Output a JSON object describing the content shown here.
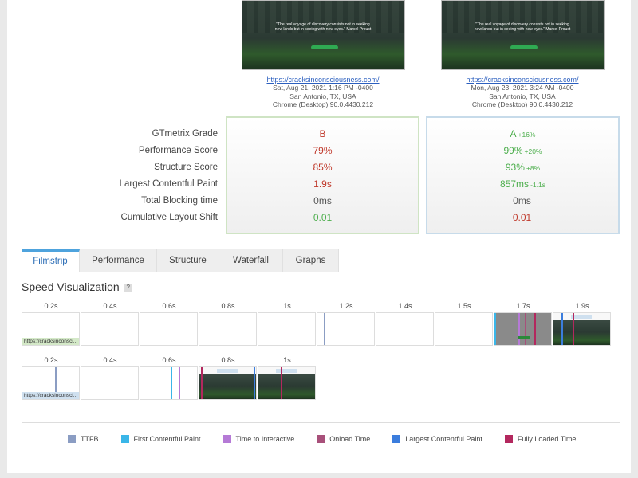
{
  "reports": [
    {
      "quote": "\"The real voyage of discovery consists not in seeking new lands but in seeing with new eyes.\" Marcel Proust",
      "url": "https://cracksinconsciousness.com/",
      "date": "Sat, Aug 21, 2021 1:16 PM -0400",
      "location": "San Antonio, TX, USA",
      "browser": "Chrome (Desktop) 90.0.4430.212"
    },
    {
      "quote": "\"The real voyage of discovery consists not in seeking new lands but in seeing with new eyes.\" Marcel Proust",
      "url": "https://cracksinconsciousness.com/",
      "date": "Mon, Aug 23, 2021 3:24 AM -0400",
      "location": "San Antonio, TX, USA",
      "browser": "Chrome (Desktop) 90.0.4430.212"
    }
  ],
  "metrics": {
    "labels": [
      "GTmetrix Grade",
      "Performance Score",
      "Structure Score",
      "Largest Contentful Paint",
      "Total Blocking time",
      "Cumulative Layout Shift"
    ],
    "before": [
      {
        "value": "B",
        "status": "bad"
      },
      {
        "value": "79%",
        "status": "bad"
      },
      {
        "value": "85%",
        "status": "bad"
      },
      {
        "value": "1.9s",
        "status": "bad"
      },
      {
        "value": "0ms",
        "status": "neutral"
      },
      {
        "value": "0.01",
        "status": "good"
      }
    ],
    "after": [
      {
        "value": "A",
        "delta": "+16%",
        "status": "good"
      },
      {
        "value": "99%",
        "delta": "+20%",
        "status": "good"
      },
      {
        "value": "93%",
        "delta": "+8%",
        "status": "good"
      },
      {
        "value": "857ms",
        "delta": "-1.1s",
        "status": "good"
      },
      {
        "value": "0ms",
        "delta": "",
        "status": "neutral"
      },
      {
        "value": "0.01",
        "delta": "",
        "status": "bad"
      }
    ]
  },
  "tabs": [
    "Filmstrip",
    "Performance",
    "Structure",
    "Waterfall",
    "Graphs"
  ],
  "active_tab": "Filmstrip",
  "speed": {
    "title": "Speed Visualization",
    "help": "?",
    "strip1": {
      "times": [
        "0.2s",
        "0.4s",
        "0.6s",
        "0.8s",
        "1s",
        "1.2s",
        "1.4s",
        "1.5s",
        "1.7s",
        "1.9s"
      ],
      "url_tag": "https://cracksinconsci..."
    },
    "strip2": {
      "times": [
        "0.2s",
        "0.4s",
        "0.6s",
        "0.8s",
        "1s"
      ],
      "url_tag": "https://cracksinconsci..."
    }
  },
  "legend": [
    {
      "label": "TTFB",
      "color": "#8b9dc3"
    },
    {
      "label": "First Contentful Paint",
      "color": "#3ab6e8"
    },
    {
      "label": "Time to Interactive",
      "color": "#b57ad6"
    },
    {
      "label": "Onload Time",
      "color": "#a8507a"
    },
    {
      "label": "Largest Contentful Paint",
      "color": "#3b7ddd"
    },
    {
      "label": "Fully Loaded Time",
      "color": "#b3285e"
    }
  ]
}
